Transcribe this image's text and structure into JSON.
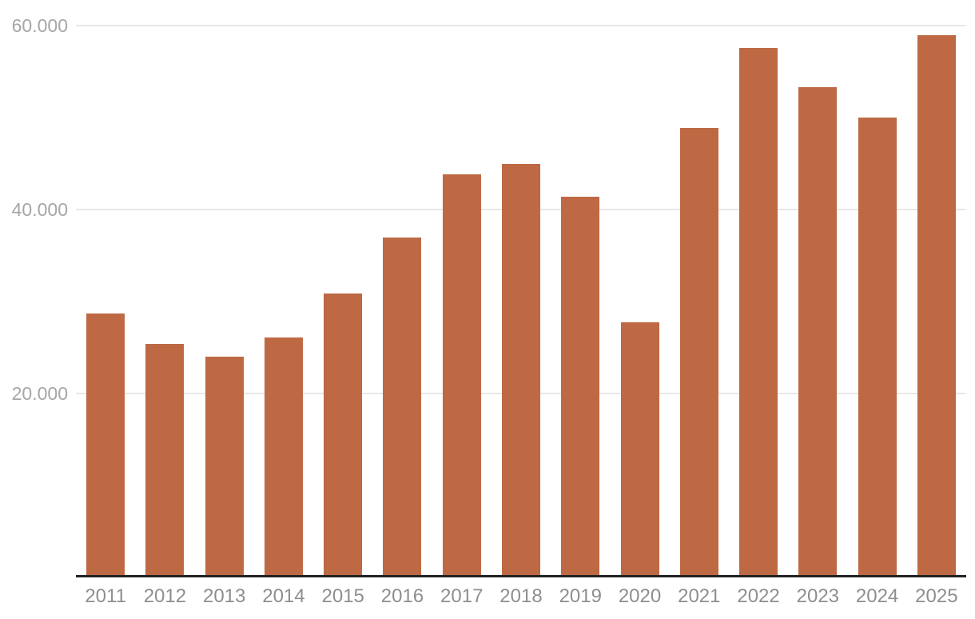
{
  "chart_data": {
    "type": "bar",
    "title": "",
    "xlabel": "",
    "ylabel": "",
    "categories": [
      "2011",
      "2012",
      "2013",
      "2014",
      "2015",
      "2016",
      "2017",
      "2018",
      "2019",
      "2020",
      "2021",
      "2022",
      "2023",
      "2024",
      "2025"
    ],
    "values": [
      28700,
      25400,
      24000,
      26100,
      30900,
      37000,
      43800,
      45000,
      41400,
      27700,
      48900,
      57600,
      53300,
      50000,
      59000
    ],
    "ylim": [
      0,
      60000
    ],
    "yticks": [
      60000,
      40000,
      20000
    ],
    "ytick_labels": [
      "60.000",
      "40.000",
      "20.000"
    ],
    "grid": true,
    "legend": false,
    "colors": {
      "bar": "#BE6943",
      "gridline": "#E8E8E8",
      "axis_line": "#222222",
      "y_tick_label": "#A6A6A6",
      "x_tick_label": "#8E8E8E",
      "background": "#FFFFFF"
    }
  }
}
